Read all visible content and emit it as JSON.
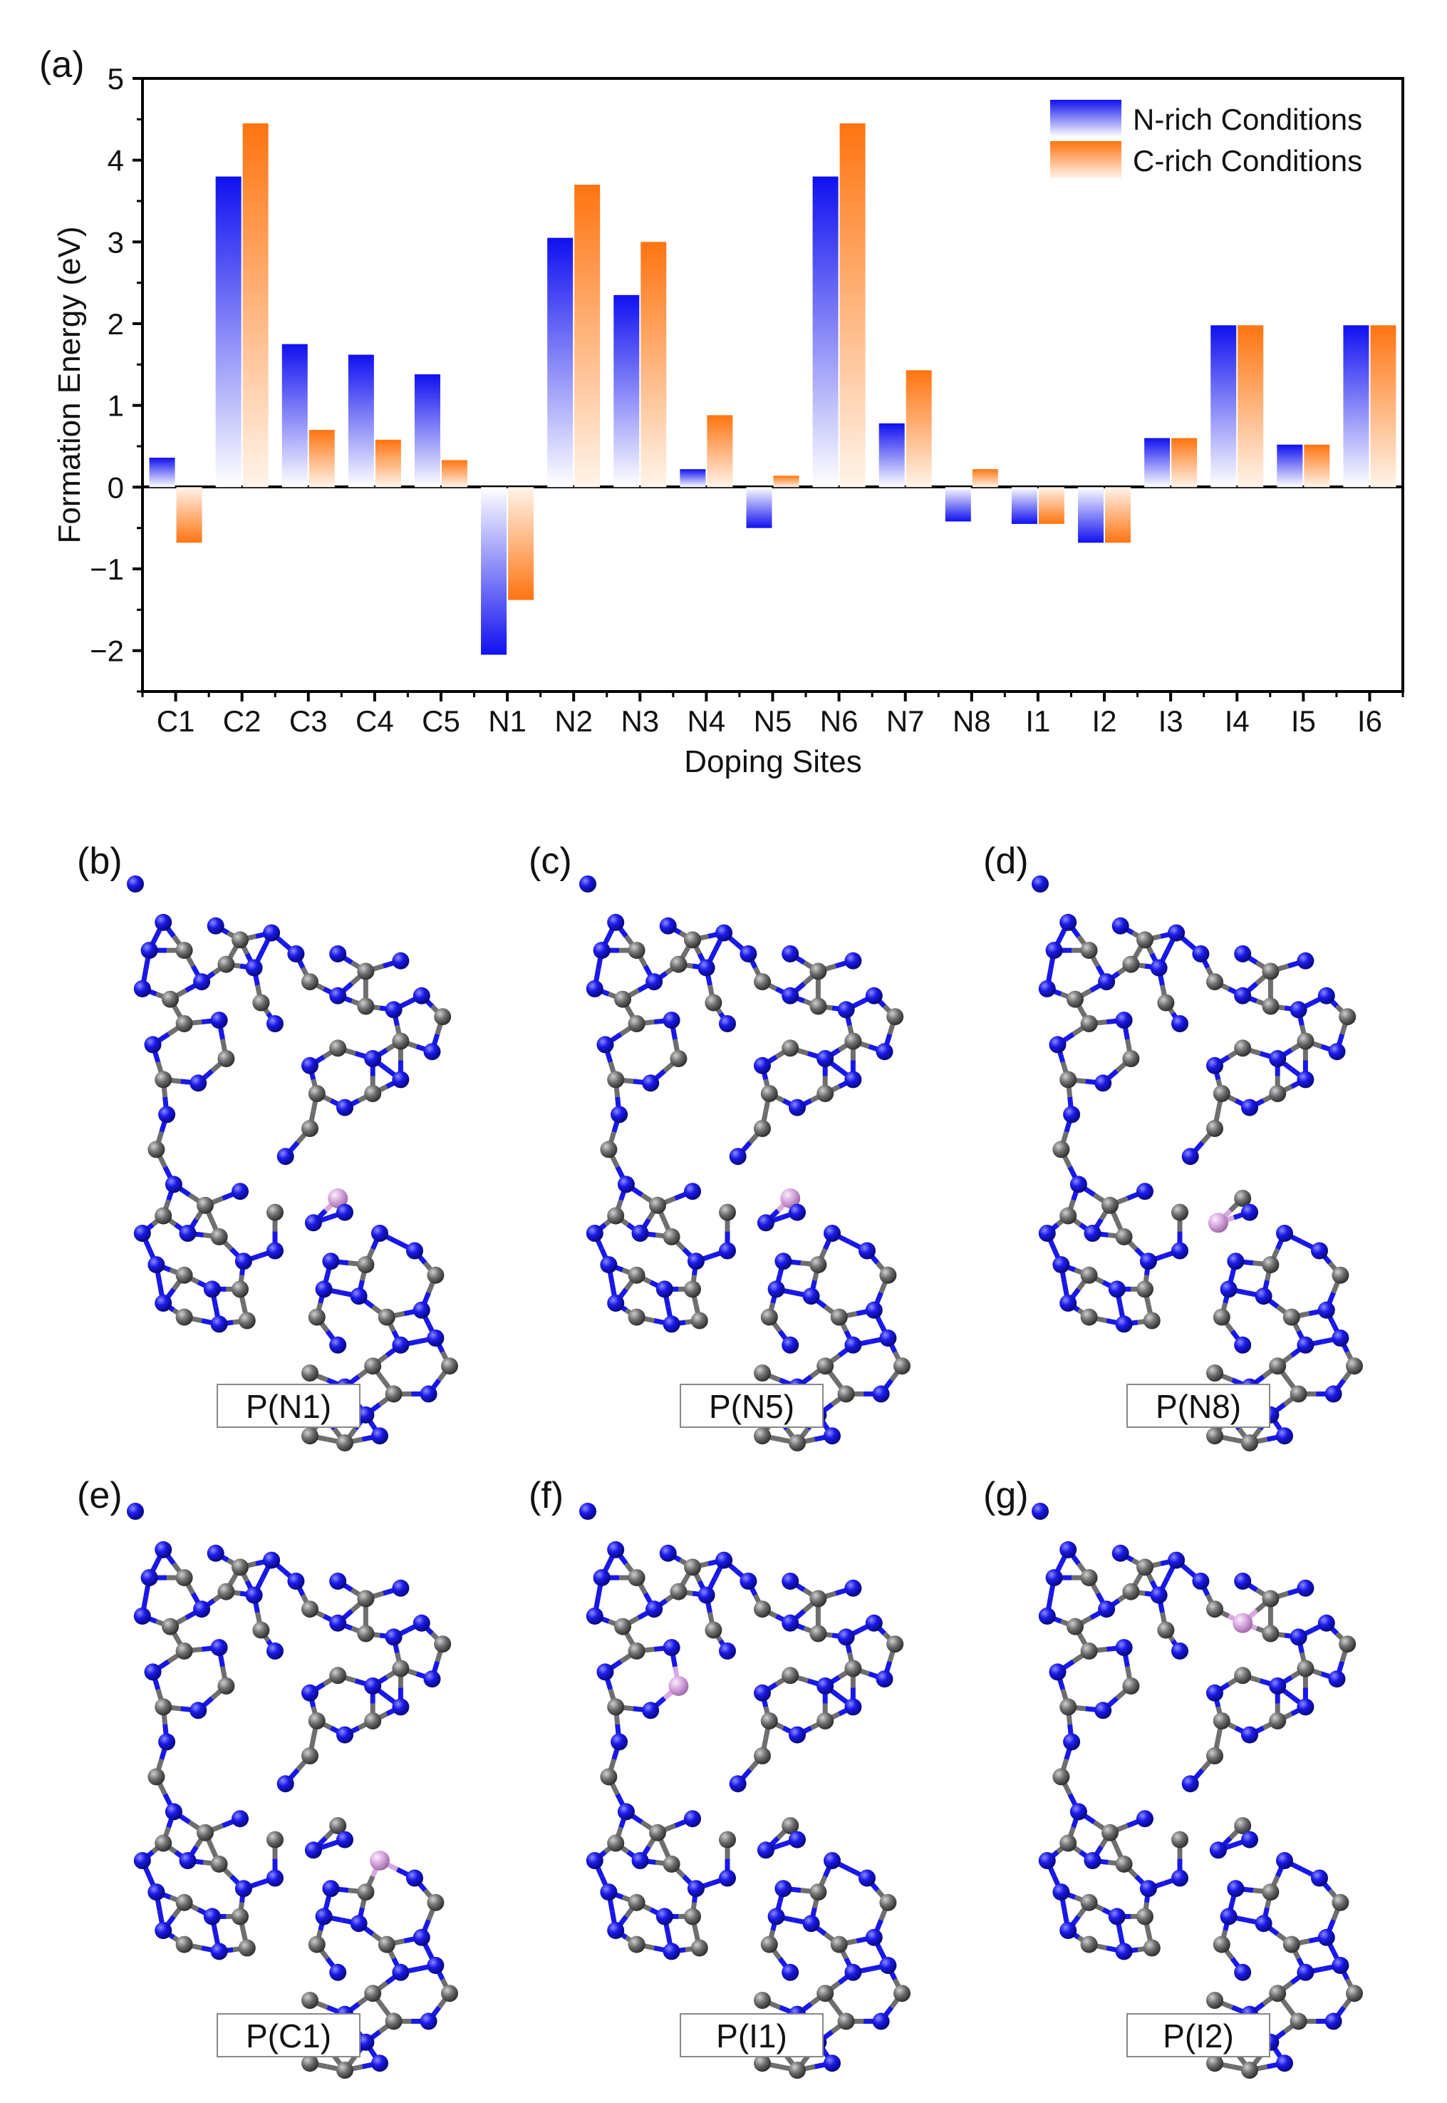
{
  "chart_data": {
    "type": "bar",
    "panel_label": "(a)",
    "xlabel": "Doping Sites",
    "ylabel": "Formation Energy (eV)",
    "ylim": [
      -2.5,
      5
    ],
    "yticks": [
      -2,
      -1,
      0,
      1,
      2,
      3,
      4,
      5
    ],
    "categories": [
      "C1",
      "C2",
      "C3",
      "C4",
      "C5",
      "N1",
      "N2",
      "N3",
      "N4",
      "N5",
      "N6",
      "N7",
      "N8",
      "I1",
      "I2",
      "I3",
      "I4",
      "I5",
      "I6"
    ],
    "series": [
      {
        "name": "N-rich Conditions",
        "color": "#1414f0",
        "values": [
          0.36,
          3.8,
          1.75,
          1.62,
          1.38,
          -2.05,
          3.05,
          2.35,
          0.22,
          -0.5,
          3.8,
          0.78,
          -0.42,
          -0.45,
          -0.68,
          0.6,
          1.98,
          0.52,
          1.98
        ]
      },
      {
        "name": "C-rich Conditions",
        "color": "#ff7a1a",
        "values": [
          -0.68,
          4.45,
          0.7,
          0.58,
          0.33,
          -1.38,
          3.7,
          3.0,
          0.88,
          0.14,
          4.45,
          1.43,
          0.22,
          -0.45,
          -0.68,
          0.6,
          1.98,
          0.52,
          1.98
        ]
      }
    ],
    "legend_position": "top-right",
    "grid": false
  },
  "panels": [
    {
      "tag": "(b)",
      "caption": "P(N1)"
    },
    {
      "tag": "(c)",
      "caption": "P(N5)"
    },
    {
      "tag": "(d)",
      "caption": "P(N8)"
    },
    {
      "tag": "(e)",
      "caption": "P(C1)"
    },
    {
      "tag": "(f)",
      "caption": "P(I1)"
    },
    {
      "tag": "(g)",
      "caption": "P(I2)"
    }
  ],
  "colors": {
    "nitrogen": "#1818e6",
    "carbon": "#6e6e6e",
    "phosphorus": "#d8a8e0"
  }
}
